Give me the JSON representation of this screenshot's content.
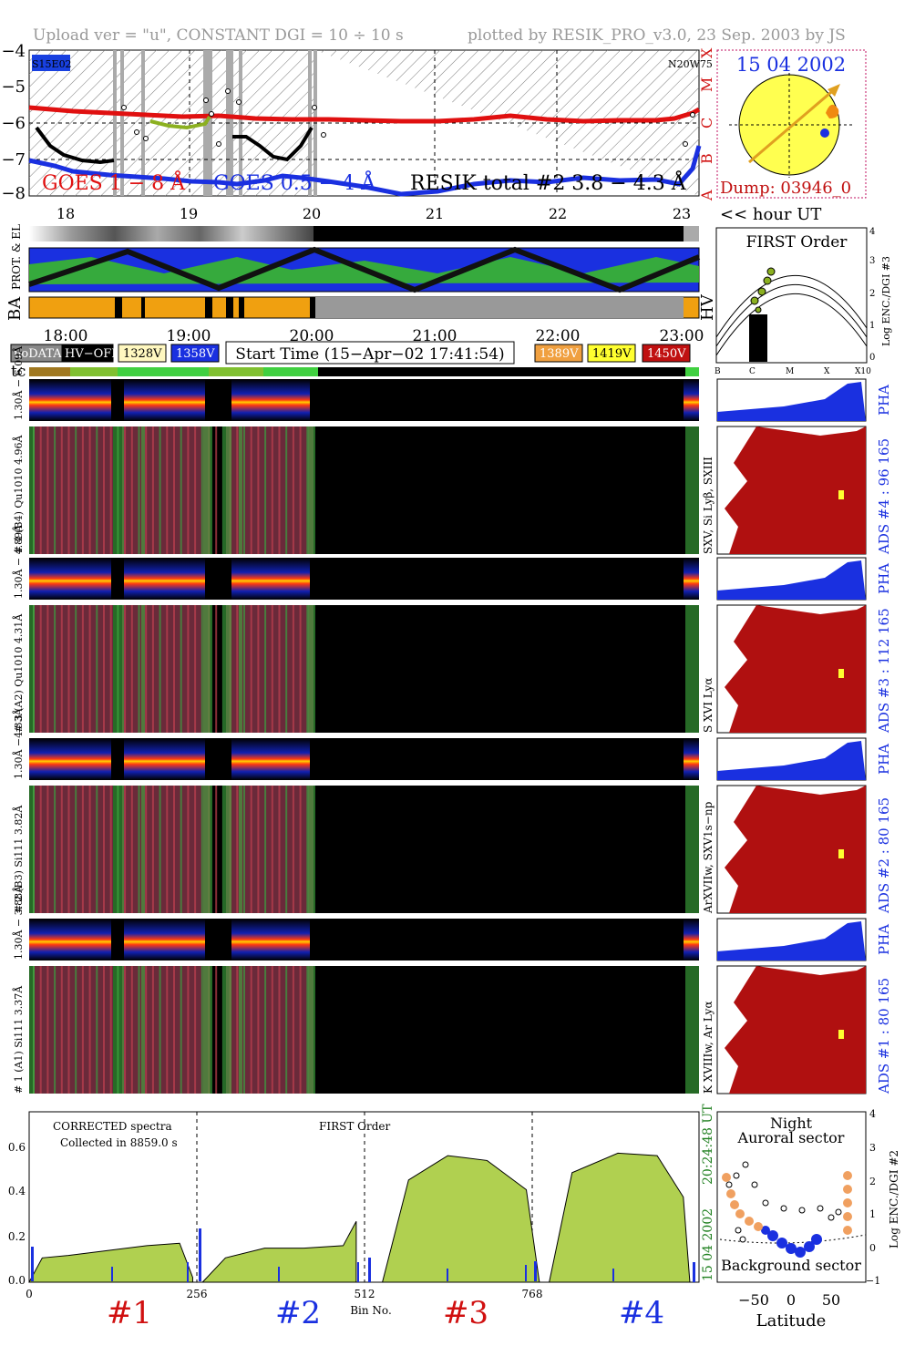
{
  "header": {
    "left": "Upload ver = \"u\", CONSTANT  DGI =  10 ÷  10 s",
    "right": "plotted by RESIK_PRO_v3.0, 23 Sep. 2003 by JS"
  },
  "goes": {
    "yticks": [
      "−4",
      "−5",
      "−6",
      "−7",
      "−8"
    ],
    "class_labels": [
      "A",
      "B",
      "C",
      "M",
      "X"
    ],
    "corner_left": "S15E02",
    "corner_right": "N20W75",
    "legend_goes_long": "GOES 1 − 8 Å",
    "legend_goes_short": "GOES 0.5 − 4 Å",
    "legend_resik": "RESIK total #2  3.8 − 4.3 Å",
    "hour_ticks": [
      "18",
      "19",
      "20",
      "21",
      "22",
      "23"
    ],
    "hour_unit": "<< hour UT"
  },
  "sun": {
    "date": "15 04 2002",
    "dump": "Dump: 03946_0"
  },
  "status_rows": {
    "label_prot_el": "PROT. & EL",
    "label_ba": "BA",
    "label_hv": "HV",
    "time_ticks": [
      "18:00",
      "19:00",
      "20:00",
      "21:00",
      "22:00",
      "23:00"
    ]
  },
  "first_order": {
    "title": "FIRST Order",
    "ylabel": "Log ENC./DGI #3",
    "yticks": [
      "4",
      "3",
      "2",
      "1",
      "0"
    ],
    "xticks": [
      "B",
      "C",
      "M",
      "X",
      "X10"
    ]
  },
  "legend_boxes": {
    "nodata": "noDATA",
    "hvoff": "HV−OFF",
    "v1328": "1328V",
    "v1358": "1358V",
    "start_time": "Start Time (15−Apr−02 17:41:54)",
    "v1389": "1389V",
    "v1419": "1419V",
    "v1450": "1450V",
    "tc": "tc"
  },
  "channels": [
    {
      "pha_label": "1.30Å − 6.09Å",
      "main_label": "# 4 (B4) Qu1010 4.96Å",
      "right_lines": "SXV, Si Lyβ, SXIII",
      "ads": "ADS #4 :   96 165",
      "pha": "PHA"
    },
    {
      "pha_label": "1.30Å − 4.89Å",
      "main_label": "# 3 (A2) Qu1010  4.31Å",
      "right_lines": "S XVI Lyα",
      "ads": "ADS #3 :   112 165",
      "pha": "PHA"
    },
    {
      "pha_label": "1.30Å −4.33Å",
      "main_label": "# 2 (B3) Si111  3.82Å",
      "right_lines": "ArXVIIw, SXV1s−np",
      "ads": "ADS #2 :   80 165",
      "pha": "PHA"
    },
    {
      "pha_label": "1.30Å − 3.88Å",
      "main_label": "# 1 (A1) Si111  3.37Å",
      "right_lines": "K XVIIIw, Ar Lyα",
      "ads": "ADS #1 :   80 165",
      "pha": "PHA"
    }
  ],
  "spectrum": {
    "note1": "CORRECTED spectra",
    "note2": "Collected in  8859.0 s",
    "note3": "FIRST Order",
    "yticks": [
      "0.6",
      "0.4",
      "0.2",
      "0.0"
    ],
    "xticks": [
      "0",
      "256",
      "512",
      "768"
    ],
    "xlabel": "Bin No.",
    "time_label": "20:24:48 UT",
    "date_label": "15 04 2002",
    "ch_labels": [
      "#1",
      "#2",
      "#3",
      "#4"
    ]
  },
  "latitude": {
    "t1": "Night",
    "t2": "Auroral sector",
    "t3": "Background sector",
    "xlabel": "Latitude",
    "xticks": [
      "−50",
      "0",
      "50"
    ],
    "yticks": [
      "4",
      "3",
      "2",
      "1",
      "0",
      "−1"
    ],
    "ylabel": "Log ENC./DGI #2"
  },
  "chart_data": [
    {
      "type": "line",
      "title": "",
      "ylabel": "log flux",
      "x_hours": [
        17.7,
        18.0,
        18.5,
        19.0,
        19.5,
        20.0,
        21.0,
        22.0,
        23.0,
        23.1
      ],
      "series": [
        {
          "name": "GOES 1 − 8 Å",
          "values": [
            -5.75,
            -5.85,
            -5.95,
            -5.9,
            -5.95,
            -5.97,
            -6.0,
            -5.95,
            -5.98,
            -5.8
          ]
        },
        {
          "name": "GOES 0.5 − 4 Å",
          "values": [
            -7.0,
            -7.2,
            -7.6,
            -7.7,
            -7.7,
            -7.85,
            -8.0,
            -7.9,
            -7.95,
            -7.2
          ]
        }
      ],
      "ylim": [
        -8,
        -4
      ],
      "xlim": [
        17.7,
        23.15
      ]
    },
    {
      "type": "area",
      "title": "",
      "xlabel": "Bin No.",
      "ylim": [
        0,
        0.7
      ],
      "xlim": [
        0,
        1024
      ],
      "segments": [
        {
          "label": "#1",
          "x": [
            0,
            20,
            60,
            120,
            180,
            230,
            250
          ],
          "values": [
            0.0,
            0.1,
            0.11,
            0.13,
            0.15,
            0.16,
            0.02
          ]
        },
        {
          "label": "#2",
          "x": [
            265,
            300,
            360,
            420,
            480,
            500
          ],
          "values": [
            0.0,
            0.1,
            0.14,
            0.14,
            0.15,
            0.25
          ]
        },
        {
          "label": "#3",
          "x": [
            540,
            580,
            640,
            700,
            760,
            780
          ],
          "values": [
            0.0,
            0.42,
            0.52,
            0.5,
            0.38,
            0.0
          ]
        },
        {
          "label": "#4",
          "x": [
            795,
            830,
            900,
            960,
            1000,
            1010
          ],
          "values": [
            0.0,
            0.45,
            0.53,
            0.52,
            0.35,
            0.0
          ]
        }
      ]
    }
  ]
}
